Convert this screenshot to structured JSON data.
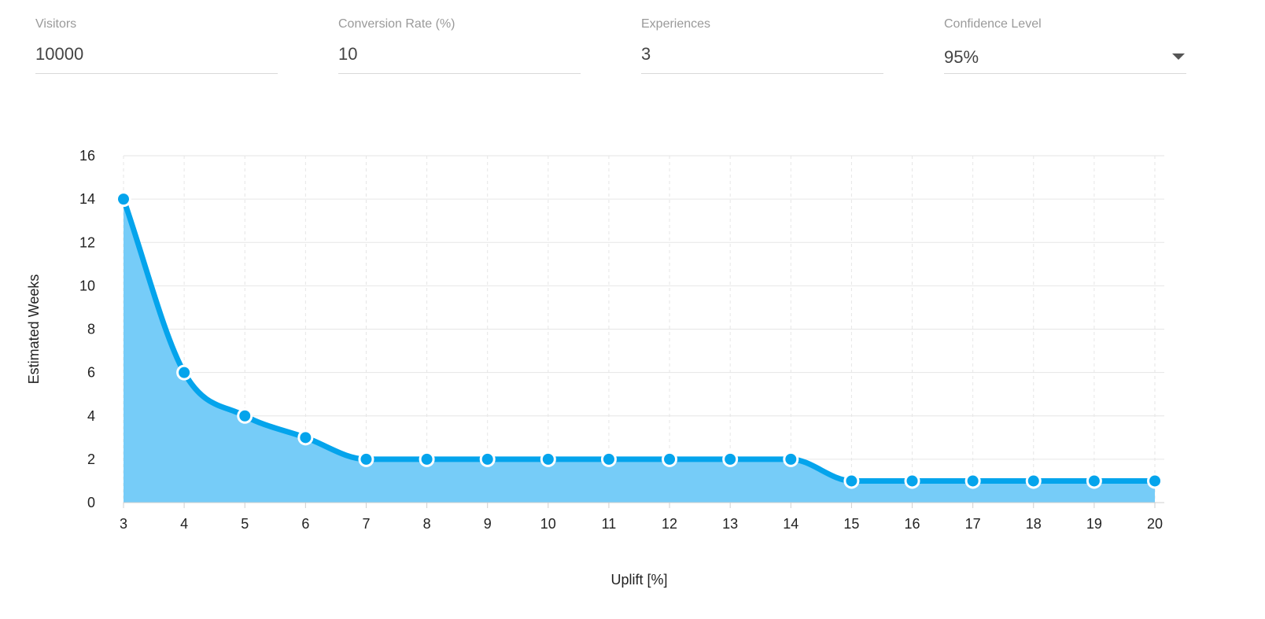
{
  "inputs": {
    "visitors": {
      "label": "Visitors",
      "value": "10000"
    },
    "conversion_rate": {
      "label": "Conversion Rate (%)",
      "value": "10"
    },
    "experiences": {
      "label": "Experiences",
      "value": "3"
    },
    "confidence_level": {
      "label": "Confidence Level",
      "value": "95%",
      "icon": "dropdown-arrow-icon"
    }
  },
  "colors": {
    "line": "#04a4ec",
    "area": "#76ccf8",
    "grid": "#e6e6e6"
  },
  "chart_data": {
    "type": "area",
    "title": "",
    "xlabel": "Uplift [%]",
    "ylabel": "Estimated Weeks",
    "x": [
      3,
      4,
      5,
      6,
      7,
      8,
      9,
      10,
      11,
      12,
      13,
      14,
      15,
      16,
      17,
      18,
      19,
      20
    ],
    "series": [
      {
        "values": [
          14,
          6,
          4,
          3,
          2,
          2,
          2,
          2,
          2,
          2,
          2,
          2,
          1,
          1,
          1,
          1,
          1,
          1
        ]
      }
    ],
    "xlim": [
      3,
      20
    ],
    "ylim": [
      0,
      16
    ],
    "yticks": [
      0,
      2,
      4,
      6,
      8,
      10,
      12,
      14,
      16
    ],
    "grid": true,
    "legend": "none"
  }
}
